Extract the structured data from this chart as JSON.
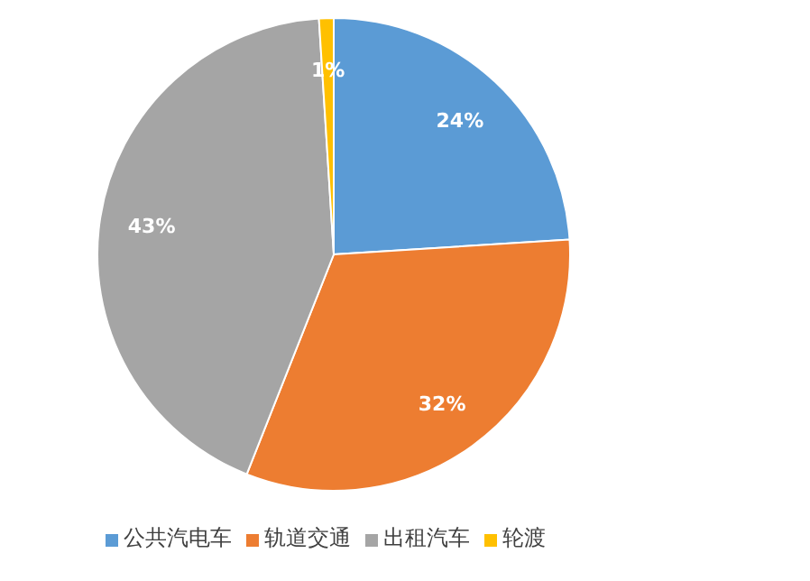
{
  "chart_data": {
    "type": "pie",
    "categories": [
      "公共汽电车",
      "轨道交通",
      "出租汽车",
      "轮渡"
    ],
    "values": [
      24,
      32,
      43,
      1
    ],
    "value_labels": [
      "24%",
      "32%",
      "43%",
      "1%"
    ],
    "colors": [
      "#5b9bd5",
      "#ed7d31",
      "#a5a5a5",
      "#ffc000"
    ],
    "legend": "bottom"
  }
}
